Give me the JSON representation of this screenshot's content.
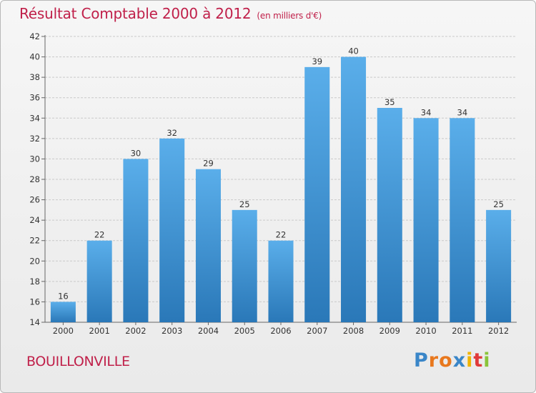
{
  "chart_data": {
    "type": "bar",
    "title": "Résultat Comptable 2000 à 2012",
    "unit_note": "(en milliers d'€)",
    "categories": [
      "2000",
      "2001",
      "2002",
      "2003",
      "2004",
      "2005",
      "2006",
      "2007",
      "2008",
      "2009",
      "2010",
      "2011",
      "2012"
    ],
    "values": [
      16,
      22,
      30,
      32,
      29,
      25,
      22,
      39,
      40,
      35,
      34,
      34,
      25
    ],
    "ylim": [
      14,
      42
    ],
    "yticks": [
      14,
      16,
      18,
      20,
      22,
      24,
      26,
      28,
      30,
      32,
      34,
      36,
      38,
      40,
      42
    ],
    "grid": true,
    "xlabel": "",
    "ylabel": ""
  },
  "footer": {
    "location": "BOUILLONVILLE",
    "logo_letters": [
      "P",
      "r",
      "o",
      "x",
      "i",
      "t",
      "i"
    ]
  },
  "colors": {
    "title": "#c0204a",
    "bar_top": "#5aaeea",
    "bar_bottom": "#2a78b8",
    "logo": [
      "#3a86c8",
      "#e8781e",
      "#e8781e",
      "#3a86c8",
      "#f0b400",
      "#e03a3a",
      "#8ac43a"
    ]
  }
}
